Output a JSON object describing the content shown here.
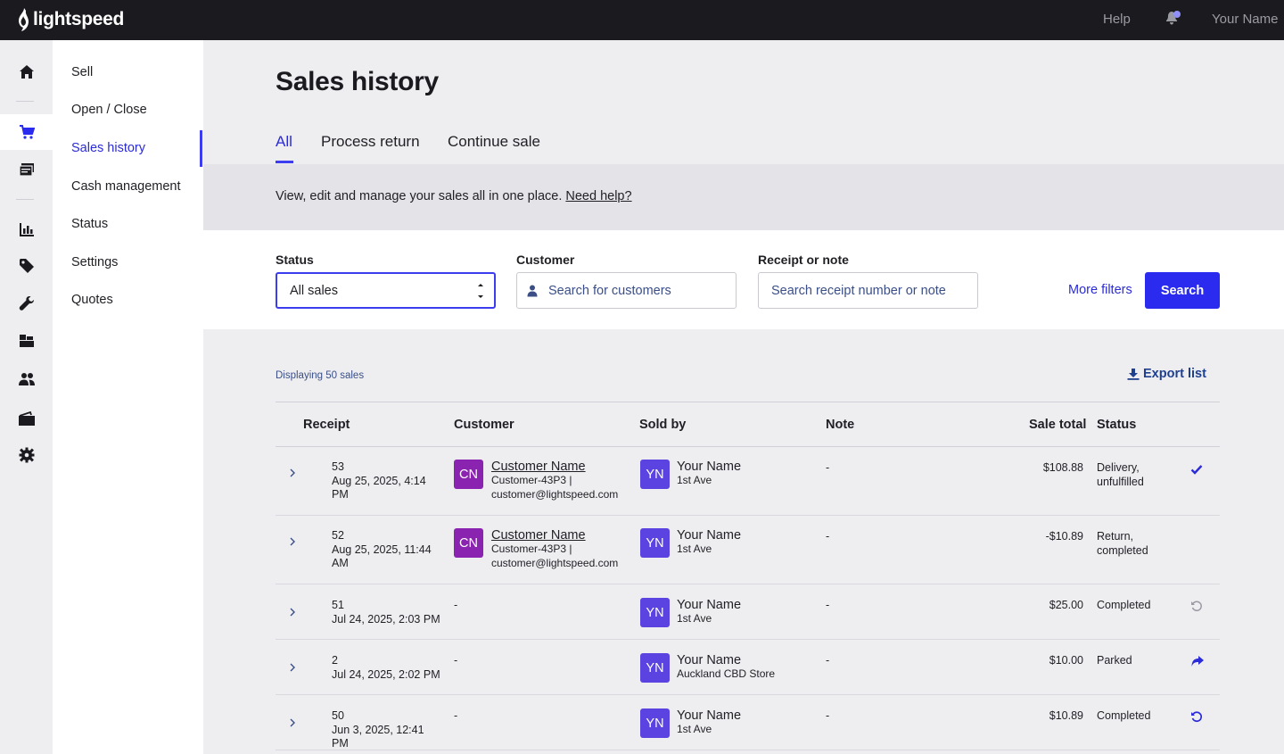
{
  "topbar": {
    "brand": "lightspeed",
    "help": "Help",
    "user": "Your Name"
  },
  "rail": {
    "icons": [
      "home-icon",
      "cart-icon",
      "register-icon",
      "chart-icon",
      "tag-icon",
      "wrench-icon",
      "boxes-icon",
      "users-icon",
      "wallet-icon",
      "gear-icon"
    ]
  },
  "submenu": {
    "items": [
      {
        "label": "Sell"
      },
      {
        "label": "Open / Close"
      },
      {
        "label": "Sales history"
      },
      {
        "label": "Cash management"
      },
      {
        "label": "Status"
      },
      {
        "label": "Settings"
      },
      {
        "label": "Quotes"
      }
    ]
  },
  "page": {
    "title": "Sales history",
    "tabs": [
      {
        "label": "All"
      },
      {
        "label": "Process return"
      },
      {
        "label": "Continue sale"
      }
    ],
    "info": {
      "text": "View, edit and manage your sales all in one place.",
      "link": "Need help?"
    }
  },
  "filters": {
    "status_label": "Status",
    "status_value": "All sales",
    "customer_label": "Customer",
    "customer_placeholder": "Search for customers",
    "receipt_label": "Receipt or note",
    "receipt_placeholder": "Search receipt number or note",
    "more_filters": "More filters",
    "search_button": "Search"
  },
  "list": {
    "displaying": "Displaying 50 sales",
    "export": "Export list",
    "columns": {
      "receipt": "Receipt",
      "customer": "Customer",
      "sold_by": "Sold by",
      "note": "Note",
      "sale_total": "Sale total",
      "status": "Status"
    },
    "rows": [
      {
        "receipt": "53",
        "date": "Aug 25, 2025, 4:14 PM",
        "customer_initials": "CN",
        "customer_name": "Customer Name",
        "customer_code": "Customer-43P3 |",
        "customer_email": "customer@lightspeed.com",
        "seller_initials": "YN",
        "seller_name": "Your Name",
        "seller_outlet": "1st Ave",
        "note": "-",
        "total": "$108.88",
        "status": "Delivery, unfulfilled",
        "status_icon": "checkmark-icon"
      },
      {
        "receipt": "52",
        "date": "Aug 25, 2025, 11:44 AM",
        "customer_initials": "CN",
        "customer_name": "Customer Name",
        "customer_code": "Customer-43P3 |",
        "customer_email": "customer@lightspeed.com",
        "seller_initials": "YN",
        "seller_name": "Your Name",
        "seller_outlet": "1st Ave",
        "note": "-",
        "total": "-$10.89",
        "status": "Return, completed",
        "status_icon": ""
      },
      {
        "receipt": "51",
        "date": "Jul 24, 2025, 2:03 PM",
        "customer_dash": "-",
        "seller_initials": "YN",
        "seller_name": "Your Name",
        "seller_outlet": "1st Ave",
        "note": "-",
        "total": "$25.00",
        "status": "Completed",
        "status_icon": "undo-icon"
      },
      {
        "receipt": "2",
        "date": "Jul 24, 2025, 2:02 PM",
        "customer_dash": "-",
        "seller_initials": "YN",
        "seller_name": "Your Name",
        "seller_outlet": "Auckland CBD Store",
        "note": "-",
        "total": "$10.00",
        "status": "Parked",
        "status_icon": "forward-icon"
      },
      {
        "receipt": "50",
        "date": "Jun 3, 2025, 12:41 PM",
        "customer_dash": "-",
        "seller_initials": "YN",
        "seller_name": "Your Name",
        "seller_outlet": "1st Ave",
        "note": "-",
        "total": "$10.89",
        "status": "Completed",
        "status_icon": "undo-icon"
      }
    ]
  },
  "colors": {
    "accent": "#2b2bf0",
    "topbar": "#1b1b1f",
    "avatar_customer": "#8a23b0",
    "avatar_user": "#5a43e0"
  }
}
